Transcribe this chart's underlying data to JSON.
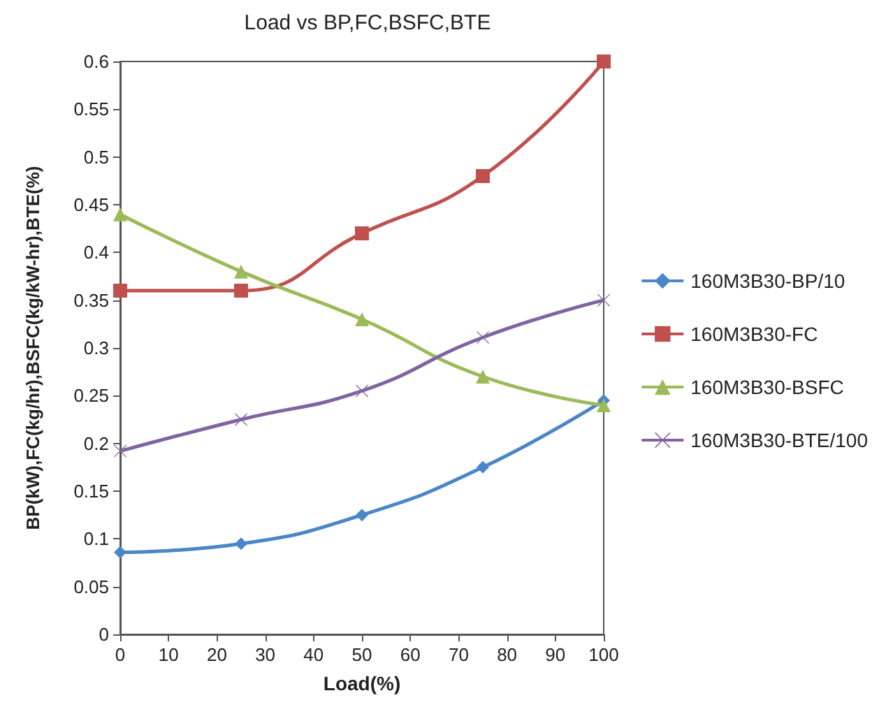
{
  "chart_data": {
    "type": "line",
    "title": "Load vs BP,FC,BSFC,BTE",
    "xlabel": "Load(%)",
    "ylabel": "BP(kW),FC(kg/hr),BSFC(kg/kW-hr),BTE(%)",
    "x": [
      0,
      25,
      50,
      75,
      100
    ],
    "series": [
      {
        "name": "160M3B30-BP/10",
        "color": "#4a86c8",
        "marker": "diamond",
        "values": [
          0.086,
          0.095,
          0.125,
          0.175,
          0.245
        ]
      },
      {
        "name": "160M3B30-FC",
        "color": "#c0504d",
        "marker": "square",
        "values": [
          0.36,
          0.36,
          0.42,
          0.48,
          0.6
        ]
      },
      {
        "name": "160M3B30-BSFC",
        "color": "#9bbb59",
        "marker": "triangle",
        "values": [
          0.44,
          0.38,
          0.33,
          0.27,
          0.24
        ]
      },
      {
        "name": "160M3B30-BTE/100",
        "color": "#8064a2",
        "marker": "cross",
        "values": [
          0.192,
          0.225,
          0.255,
          0.311,
          0.35
        ]
      }
    ],
    "xlim": [
      0,
      100
    ],
    "xticks": [
      0,
      10,
      20,
      30,
      40,
      50,
      60,
      70,
      80,
      90,
      100
    ],
    "ylim": [
      0,
      0.6
    ],
    "yticks": [
      0,
      0.05,
      0.1,
      0.15,
      0.2,
      0.25,
      0.3,
      0.35,
      0.4,
      0.45,
      0.5,
      0.55,
      0.6
    ],
    "grid": false,
    "legend": "right",
    "line_style": "solid"
  }
}
